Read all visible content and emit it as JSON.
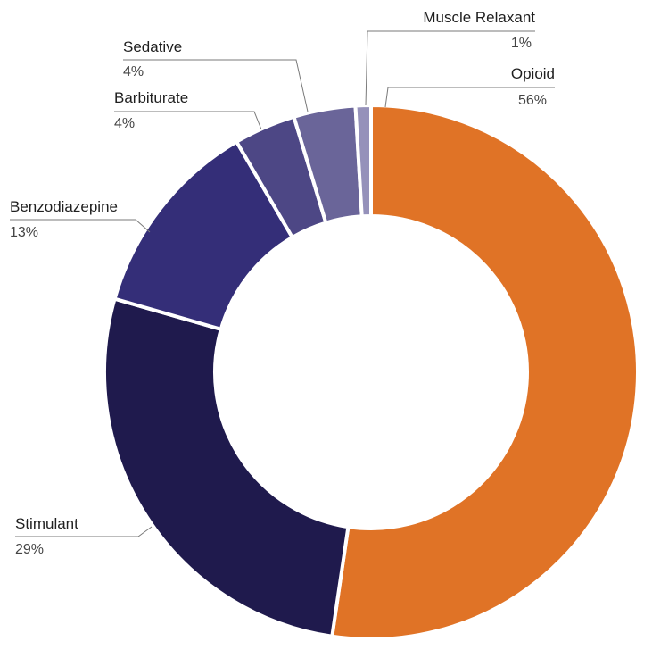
{
  "chart_data": {
    "type": "pie",
    "variant": "donut",
    "title": "",
    "categories": [
      "Opioid",
      "Stimulant",
      "Benzodiazepine",
      "Barbiturate",
      "Sedative",
      "Muscle Relaxant"
    ],
    "values": [
      56,
      29,
      13,
      4,
      4,
      1
    ],
    "value_labels": [
      "56%",
      "29%",
      "13%",
      "4%",
      "4%",
      "1%"
    ],
    "colors": [
      "#E07326",
      "#1F1A4D",
      "#342E78",
      "#4D4785",
      "#6A6599",
      "#9591BA"
    ],
    "legend": "none"
  }
}
